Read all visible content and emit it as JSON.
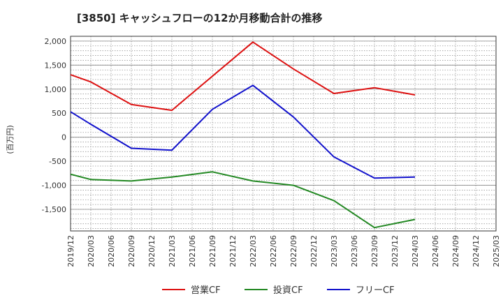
{
  "chart_data": {
    "type": "line",
    "title": "[3850]  キャッシュフローの12か月移動合計の推移",
    "ylabel": "(百万円)",
    "xlabel": "",
    "ylim": [
      -1950,
      2100
    ],
    "yticks": [
      2000,
      1500,
      1000,
      500,
      0,
      -500,
      -1000,
      -1500
    ],
    "ytick_labels": [
      "2,000",
      "1,500",
      "1,000",
      "500",
      "0",
      "-500",
      "-1,000",
      "-1,500"
    ],
    "categories": [
      "2019/12",
      "2020/03",
      "2020/06",
      "2020/09",
      "2020/12",
      "2021/03",
      "2021/06",
      "2021/09",
      "2021/12",
      "2022/03",
      "2022/06",
      "2022/09",
      "2022/12",
      "2023/03",
      "2023/06",
      "2023/09",
      "2023/12",
      "2024/03",
      "2024/06",
      "2024/09",
      "2024/12",
      "2025/03"
    ],
    "grid": true,
    "legend_position": "bottom",
    "series": [
      {
        "name": "営業CF",
        "color": "#dd1111",
        "values": [
          1300,
          1150,
          null,
          680,
          null,
          560,
          null,
          null,
          null,
          1980,
          null,
          1420,
          null,
          910,
          null,
          1030,
          null,
          880,
          null,
          null,
          null,
          null
        ]
      },
      {
        "name": "投資CF",
        "color": "#228822",
        "values": [
          -770,
          -880,
          null,
          -910,
          null,
          -830,
          null,
          -720,
          null,
          -910,
          null,
          -1000,
          null,
          -1320,
          null,
          -1880,
          null,
          -1710,
          null,
          null,
          null,
          null
        ]
      },
      {
        "name": "フリーCF",
        "color": "#1111cc",
        "values": [
          530,
          270,
          null,
          -230,
          null,
          -270,
          null,
          580,
          null,
          1080,
          null,
          420,
          null,
          -410,
          null,
          -850,
          null,
          -830,
          null,
          null,
          null,
          null
        ]
      }
    ]
  }
}
